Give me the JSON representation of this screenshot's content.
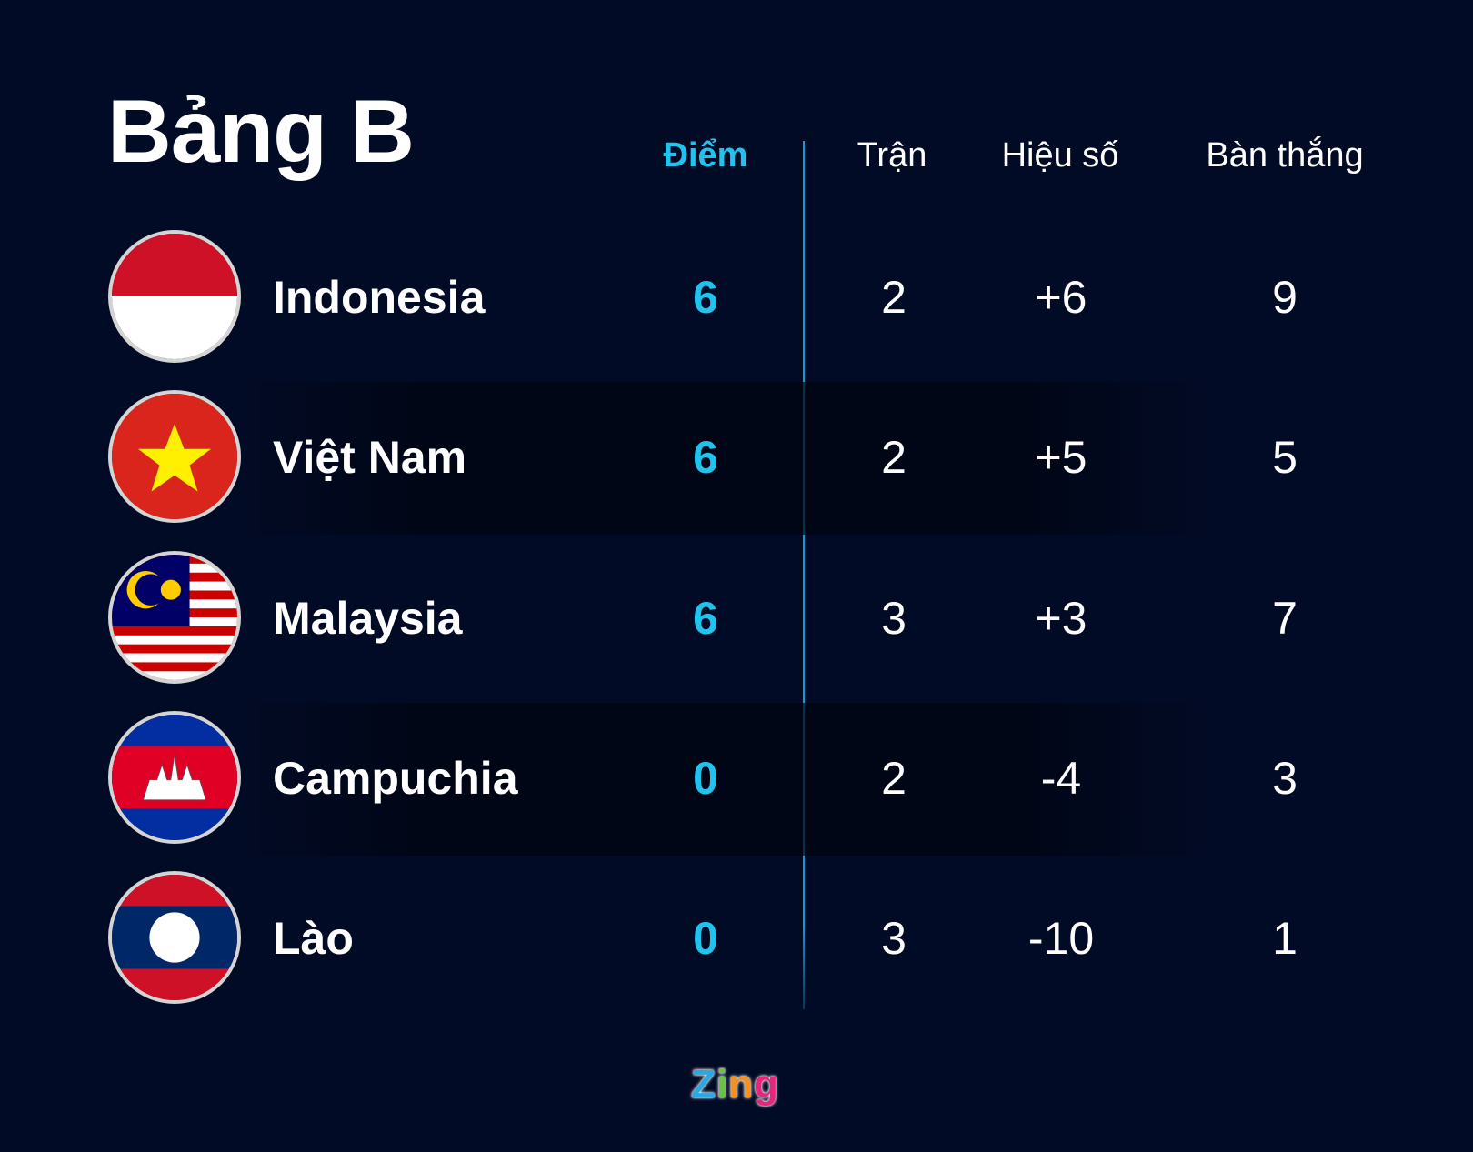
{
  "title": "Bảng B",
  "headers": {
    "points": "Điểm",
    "played": "Trận",
    "goal_diff": "Hiệu số",
    "goals_for": "Bàn thắng"
  },
  "colors": {
    "background": "#020b26",
    "accent": "#1fc3ee"
  },
  "rows": [
    {
      "team": "Indonesia",
      "flag": "indonesia-flag",
      "points": "6",
      "played": "2",
      "goal_diff": "+6",
      "goals_for": "9"
    },
    {
      "team": "Việt Nam",
      "flag": "vietnam-flag",
      "points": "6",
      "played": "2",
      "goal_diff": "+5",
      "goals_for": "5"
    },
    {
      "team": "Malaysia",
      "flag": "malaysia-flag",
      "points": "6",
      "played": "3",
      "goal_diff": "+3",
      "goals_for": "7"
    },
    {
      "team": "Campuchia",
      "flag": "cambodia-flag",
      "points": "0",
      "played": "2",
      "goal_diff": "-4",
      "goals_for": "3"
    },
    {
      "team": "Lào",
      "flag": "laos-flag",
      "points": "0",
      "played": "3",
      "goal_diff": "-10",
      "goals_for": "1"
    }
  ],
  "logo": {
    "text": "Zing",
    "letters": [
      "Z",
      "i",
      "n",
      "g"
    ],
    "letter_colors": [
      "#29a9e1",
      "#6cc04a",
      "#f39221",
      "#e6257d"
    ]
  }
}
